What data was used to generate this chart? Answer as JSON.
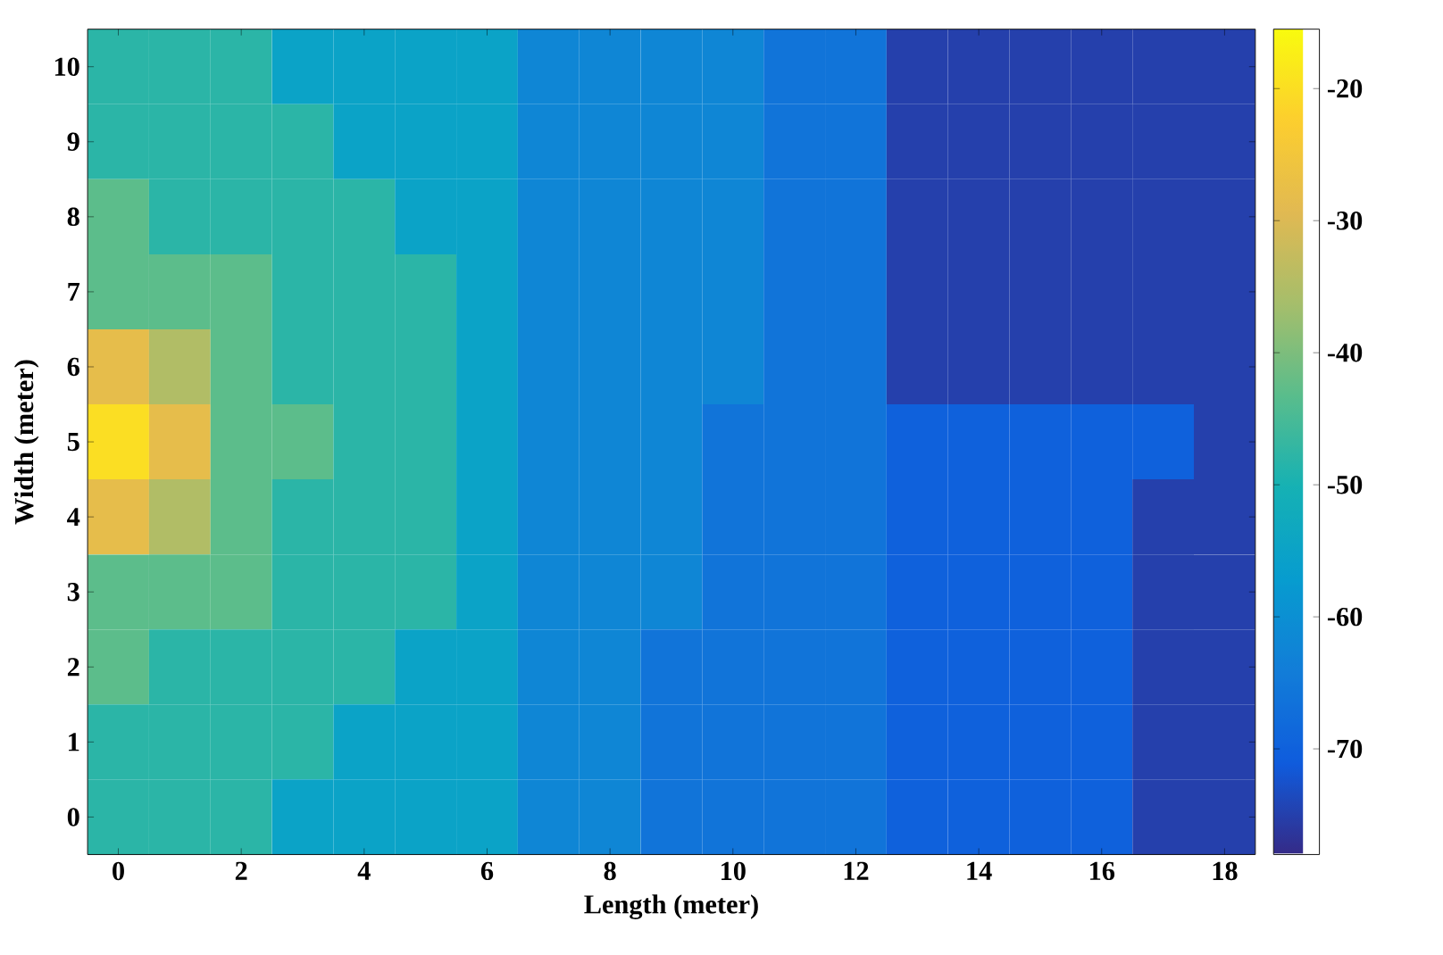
{
  "chart_data": {
    "type": "heatmap",
    "xlabel": "Length (meter)",
    "ylabel": "Width (meter)",
    "categories": [
      "0",
      null,
      "2",
      null,
      "4",
      null,
      "6",
      null,
      "8",
      null,
      "10",
      null,
      "12",
      null,
      "14",
      null,
      "16",
      null,
      "18"
    ],
    "y_categories": [
      "10",
      "9",
      "8",
      "7",
      "6",
      "5",
      "4",
      "3",
      "2",
      "1",
      "0"
    ],
    "clim": [
      -78,
      -15.5
    ],
    "cticks": [
      -70,
      -60,
      -50,
      -40,
      -30,
      -20
    ],
    "cells": [
      [
        -48,
        -48,
        -48,
        -55,
        -55,
        -55,
        -55,
        -62,
        -62,
        -62,
        -62,
        -66,
        -66,
        -75,
        -75,
        -75,
        -75,
        -75,
        -75
      ],
      [
        -48,
        -48,
        -48,
        -48,
        -55,
        -55,
        -55,
        -62,
        -62,
        -62,
        -62,
        -66,
        -66,
        -75,
        -75,
        -75,
        -75,
        -75,
        -75
      ],
      [
        -43,
        -48,
        -48,
        -48,
        -48,
        -55,
        -55,
        -62,
        -62,
        -62,
        -62,
        -66,
        -66,
        -75,
        -75,
        -75,
        -75,
        -75,
        -75
      ],
      [
        -43,
        -43,
        -43,
        -48,
        -48,
        -48,
        -55,
        -62,
        -62,
        -62,
        -62,
        -66,
        -66,
        -75,
        -75,
        -75,
        -75,
        -75,
        -75
      ],
      [
        -28,
        -35,
        -43,
        -48,
        -48,
        -48,
        -55,
        -62,
        -62,
        -62,
        -62,
        -66,
        -66,
        -75,
        -75,
        -75,
        -75,
        -75,
        -75
      ],
      [
        -20,
        -28,
        -43,
        -43,
        -48,
        -48,
        -55,
        -62,
        -62,
        -62,
        -66,
        -66,
        -66,
        -70,
        -70,
        -70,
        -70,
        -70,
        -75
      ],
      [
        -28,
        -35,
        -43,
        -48,
        -48,
        -48,
        -55,
        -62,
        -62,
        -62,
        -66,
        -66,
        -66,
        -70,
        -70,
        -70,
        -70,
        -75,
        -75
      ],
      [
        -43,
        -43,
        -43,
        -48,
        -48,
        -48,
        -55,
        -62,
        -62,
        -62,
        -66,
        -66,
        -66,
        -70,
        -70,
        -70,
        -70,
        -75,
        -75
      ],
      [
        -43,
        -48,
        -48,
        -48,
        -48,
        -55,
        -55,
        -62,
        -62,
        -66,
        -66,
        -66,
        -66,
        -70,
        -70,
        -70,
        -70,
        -75,
        -75
      ],
      [
        -48,
        -48,
        -48,
        -48,
        -55,
        -55,
        -55,
        -62,
        -62,
        -66,
        -66,
        -66,
        -66,
        -70,
        -70,
        -70,
        -70,
        -75,
        -75
      ],
      [
        -48,
        -48,
        -48,
        -55,
        -55,
        -55,
        -55,
        -62,
        -62,
        -66,
        -66,
        -66,
        -66,
        -70,
        -70,
        -70,
        -70,
        -75,
        -75
      ]
    ]
  }
}
